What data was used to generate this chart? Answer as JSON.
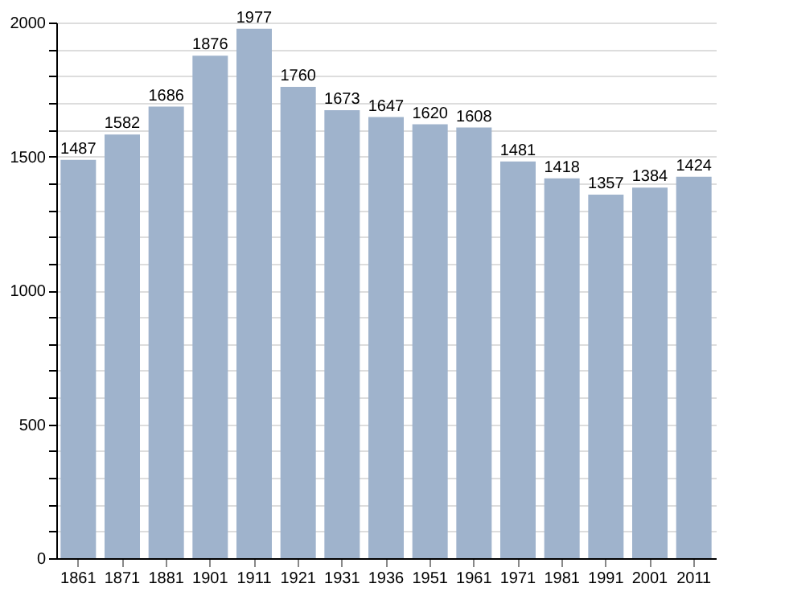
{
  "chart_data": {
    "type": "bar",
    "categories": [
      "1861",
      "1871",
      "1881",
      "1901",
      "1911",
      "1921",
      "1931",
      "1936",
      "1951",
      "1961",
      "1971",
      "1981",
      "1991",
      "2001",
      "2011"
    ],
    "values": [
      1487,
      1582,
      1686,
      1876,
      1977,
      1760,
      1673,
      1647,
      1620,
      1608,
      1481,
      1418,
      1357,
      1384,
      1424
    ],
    "color": "#9fb3cc",
    "data_labels": true,
    "ylim": [
      0,
      2000
    ],
    "yticks": [
      0,
      {
        "value": 100,
        "label": null
      },
      {
        "value": 200,
        "label": null
      },
      {
        "value": 300,
        "label": null
      },
      {
        "value": 400,
        "label": null
      },
      500,
      {
        "value": 600,
        "label": null
      },
      {
        "value": 700,
        "label": null
      },
      {
        "value": 800,
        "label": null
      },
      {
        "value": 900,
        "label": null
      },
      1000,
      {
        "value": 1100,
        "label": null
      },
      {
        "value": 1200,
        "label": null
      },
      {
        "value": 1300,
        "label": null
      },
      {
        "value": 1400,
        "label": null
      },
      1500,
      {
        "value": 1600,
        "label": null
      },
      {
        "value": 1700,
        "label": null
      },
      {
        "value": 1800,
        "label": null
      },
      {
        "value": 1900,
        "label": null
      },
      2000
    ],
    "grid": "y"
  }
}
